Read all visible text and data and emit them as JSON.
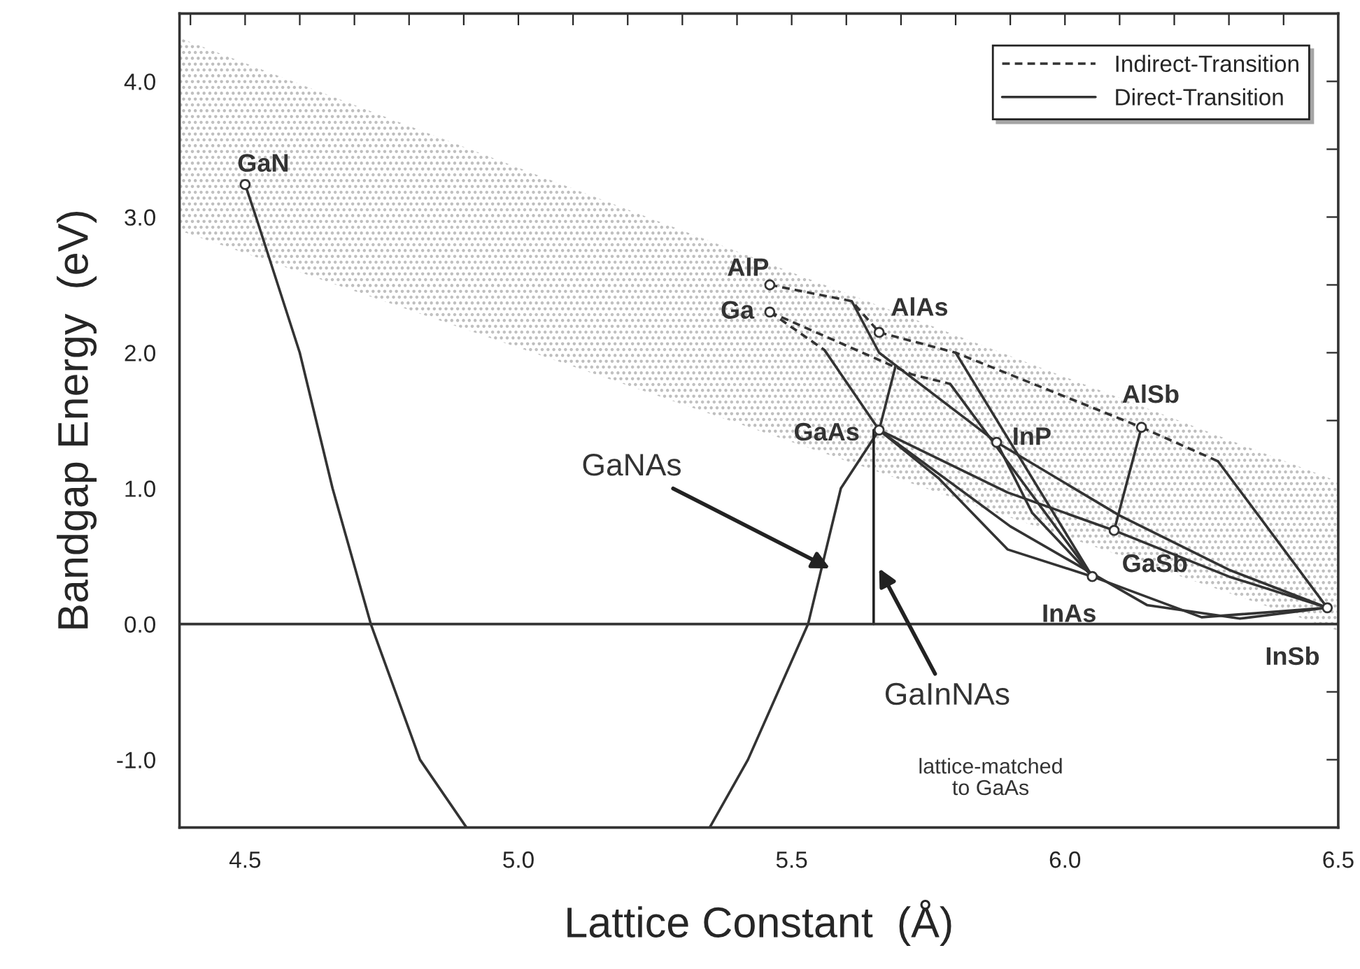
{
  "chart_data": {
    "type": "line",
    "xlabel": "Lattice Constant  (Å)",
    "ylabel": "Bandgap Energy  (eV)",
    "xlim": [
      4.38,
      6.5
    ],
    "ylim": [
      -1.5,
      4.5
    ],
    "xticks": [
      {
        "value": 4.4,
        "label": null
      },
      4.5,
      {
        "value": 4.6,
        "label": null
      },
      {
        "value": 4.7,
        "label": null
      },
      {
        "value": 4.8,
        "label": null
      },
      {
        "value": 4.9,
        "label": null
      },
      {
        "value": 5.0,
        "label": "5.0"
      },
      {
        "value": 5.1,
        "label": null
      },
      {
        "value": 5.2,
        "label": null
      },
      {
        "value": 5.3,
        "label": null
      },
      {
        "value": 5.4,
        "label": null
      },
      5.5,
      {
        "value": 5.6,
        "label": null
      },
      {
        "value": 5.7,
        "label": null
      },
      {
        "value": 5.8,
        "label": null
      },
      {
        "value": 5.9,
        "label": null
      },
      {
        "value": 6.0,
        "label": "6.0"
      },
      {
        "value": 6.1,
        "label": null
      },
      {
        "value": 6.2,
        "label": null
      },
      {
        "value": 6.3,
        "label": null
      },
      {
        "value": 6.4,
        "label": null
      },
      6.5
    ],
    "yticks": [
      {
        "value": -1.5,
        "label": null
      },
      {
        "value": -1.0,
        "label": "-1.0"
      },
      {
        "value": -0.5,
        "label": null
      },
      {
        "value": 0.0,
        "label": "0.0"
      },
      {
        "value": 0.5,
        "label": null
      },
      {
        "value": 1.0,
        "label": "1.0"
      },
      {
        "value": 1.5,
        "label": null
      },
      {
        "value": 2.0,
        "label": "2.0"
      },
      {
        "value": 2.5,
        "label": null
      },
      {
        "value": 3.0,
        "label": "3.0"
      },
      {
        "value": 3.5,
        "label": null
      },
      {
        "value": 4.0,
        "label": "4.0"
      }
    ],
    "grid": false,
    "legend": "top right",
    "ref_lines": [
      {
        "axis": "y",
        "value": 0.0,
        "color": "#333333"
      }
    ],
    "series": [
      {
        "type": "area",
        "color": "#bdbdbd",
        "x": [
          4.38,
          6.5
        ],
        "values": [
          null,
          null
        ],
        "lower": [
          2.9,
          -0.05
        ],
        "upper": [
          4.32,
          1.05
        ]
      },
      {
        "name": "Indirect-Transition",
        "line_style": "dashed",
        "color": "#333333",
        "x": [
          5.46,
          5.61,
          5.66
        ],
        "values": [
          2.5,
          2.38,
          2.15
        ]
      },
      {
        "line_style": "dashed",
        "color": "#333333",
        "x": [
          5.66,
          5.8,
          6.14
        ],
        "values": [
          2.15,
          2.0,
          1.45
        ]
      },
      {
        "line_style": "dashed",
        "color": "#333333",
        "x": [
          6.14,
          6.28
        ],
        "values": [
          1.45,
          1.2
        ]
      },
      {
        "line_style": "dashed",
        "color": "#333333",
        "x": [
          5.46,
          5.56
        ],
        "values": [
          2.3,
          2.02
        ]
      },
      {
        "line_style": "dashed",
        "color": "#333333",
        "x": [
          5.46,
          5.72,
          5.79
        ],
        "values": [
          2.3,
          1.84,
          1.77
        ]
      },
      {
        "name": "Direct-Transition",
        "line_style": "solid",
        "color": "#333333",
        "x": [
          5.56,
          5.66
        ],
        "values": [
          2.02,
          1.43
        ]
      },
      {
        "line_style": "solid",
        "color": "#333333",
        "x": [
          5.61,
          5.66,
          5.875
        ],
        "values": [
          2.38,
          2.0,
          1.34
        ]
      },
      {
        "line_style": "solid",
        "color": "#333333",
        "x": [
          5.66,
          5.77,
          5.895,
          6.05
        ],
        "values": [
          1.43,
          1.07,
          0.55,
          0.35
        ]
      },
      {
        "line_style": "solid",
        "color": "#333333",
        "x": [
          5.66,
          5.895,
          6.09
        ],
        "values": [
          1.43,
          0.97,
          0.69
        ]
      },
      {
        "line_style": "solid",
        "color": "#333333",
        "x": [
          5.875,
          5.94,
          6.05
        ],
        "values": [
          1.34,
          0.82,
          0.35
        ]
      },
      {
        "line_style": "solid",
        "color": "#333333",
        "x": [
          5.8,
          6.05
        ],
        "values": [
          2.0,
          0.35
        ]
      },
      {
        "line_style": "solid",
        "color": "#333333",
        "x": [
          5.79,
          6.05
        ],
        "values": [
          1.77,
          0.35
        ]
      },
      {
        "line_style": "solid",
        "color": "#333333",
        "x": [
          5.66,
          5.9,
          6.15,
          6.32,
          6.48
        ],
        "values": [
          1.43,
          0.72,
          0.14,
          0.04,
          0.12
        ]
      },
      {
        "line_style": "solid",
        "color": "#333333",
        "x": [
          5.875,
          6.1,
          6.3,
          6.48
        ],
        "values": [
          1.34,
          0.8,
          0.4,
          0.12
        ]
      },
      {
        "line_style": "solid",
        "color": "#333333",
        "x": [
          6.09,
          6.3,
          6.48
        ],
        "values": [
          0.69,
          0.35,
          0.12
        ]
      },
      {
        "line_style": "solid",
        "color": "#333333",
        "x": [
          6.14,
          6.09
        ],
        "values": [
          1.45,
          0.69
        ]
      },
      {
        "line_style": "solid",
        "color": "#333333",
        "x": [
          6.05,
          6.25,
          6.48
        ],
        "values": [
          0.35,
          0.05,
          0.12
        ]
      },
      {
        "line_style": "solid",
        "color": "#333333",
        "x": [
          6.28,
          6.48
        ],
        "values": [
          1.2,
          0.12
        ]
      },
      {
        "line_style": "solid",
        "color": "#333333",
        "x": [
          4.5,
          4.52,
          4.6,
          4.66,
          4.73,
          4.82,
          4.905
        ],
        "values": [
          3.24,
          3.0,
          2.0,
          1.0,
          0.0,
          -1.0,
          -1.5
        ]
      },
      {
        "line_style": "solid",
        "color": "#333333",
        "x": [
          5.35,
          5.42,
          5.53,
          5.59,
          5.66,
          5.69
        ],
        "values": [
          -1.5,
          -1.0,
          0.0,
          1.0,
          1.43,
          1.9
        ]
      },
      {
        "line_style": "solid",
        "color": "#222222",
        "x": [
          5.65,
          5.65
        ],
        "values": [
          0.0,
          1.43
        ]
      },
      {
        "type": "scatter",
        "marker": "circle",
        "color": "#333333",
        "x": [
          4.5,
          5.46,
          5.46,
          5.66,
          5.66,
          5.875,
          6.14,
          6.09,
          6.05,
          6.48
        ],
        "values": [
          3.24,
          2.5,
          2.3,
          2.15,
          1.43,
          1.34,
          1.45,
          0.69,
          0.35,
          0.12
        ]
      }
    ],
    "annotations": [
      {
        "text": "GaN",
        "x": 4.5,
        "y": 3.24
      },
      {
        "text": "AlP",
        "x": 5.46,
        "y": 2.5
      },
      {
        "text": "Ga",
        "x": 5.46,
        "y": 2.3
      },
      {
        "text": "AlAs",
        "x": 5.66,
        "y": 2.15
      },
      {
        "text": "GaAs",
        "x": 5.66,
        "y": 1.43
      },
      {
        "text": "InP",
        "x": 5.875,
        "y": 1.34
      },
      {
        "text": "AlSb",
        "x": 6.14,
        "y": 1.45
      },
      {
        "text": "GaSb",
        "x": 6.09,
        "y": 0.69
      },
      {
        "text": "InAs",
        "x": 6.05,
        "y": 0.35
      },
      {
        "text": "InSb",
        "x": 6.48,
        "y": 0.12
      },
      {
        "text": "GaNAs",
        "x": 5.57,
        "y": 0.41
      },
      {
        "text": "GaInNAs",
        "x": 5.66,
        "y": 0.41
      },
      "lattice-matched\nto GaAs"
    ]
  }
}
